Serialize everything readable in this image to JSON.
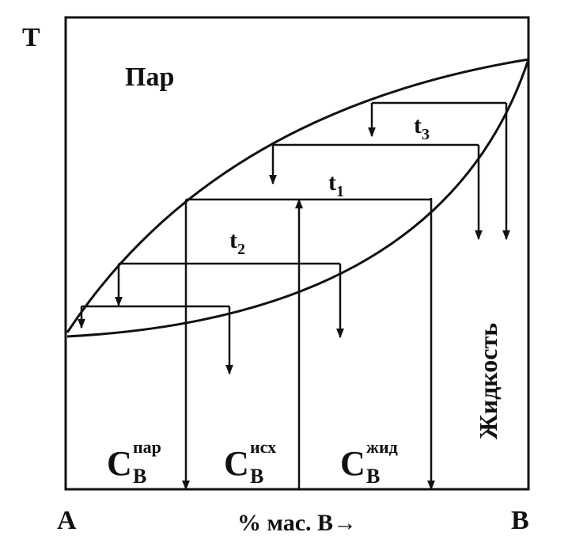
{
  "axis": {
    "y": "T",
    "origin": "A",
    "end": "B",
    "x": "% мас. B→"
  },
  "regions": {
    "vapor": "Пар",
    "liquid": "Жидкость"
  },
  "temperatures": [
    {
      "base": "t",
      "sub": "3"
    },
    {
      "base": "t",
      "sub": "1"
    },
    {
      "base": "t",
      "sub": "2"
    }
  ],
  "concentrations": [
    {
      "base": "C",
      "sub": "B",
      "sup": "пар"
    },
    {
      "base": "C",
      "sub": "B",
      "sup": "исх"
    },
    {
      "base": "C",
      "sub": "B",
      "sup": "жид"
    }
  ]
}
